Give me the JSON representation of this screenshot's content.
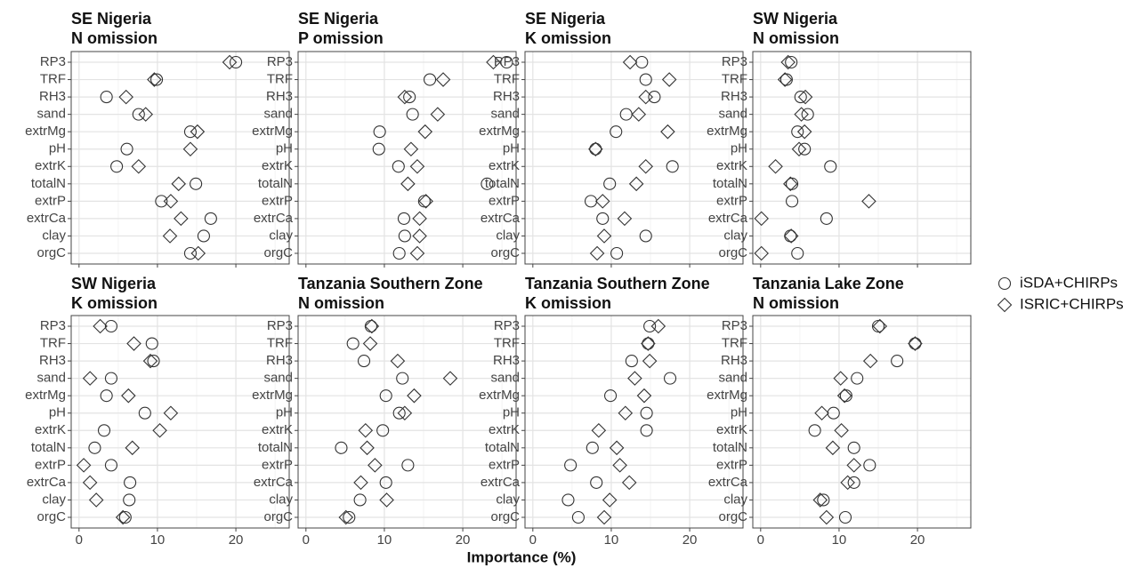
{
  "xlabel": "Importance (%)",
  "chart_data": [
    {
      "type": "dot",
      "title": "SE Nigeria",
      "subtitle": "N omission",
      "categories": [
        "RP3",
        "TRF",
        "RH3",
        "sand",
        "extrMg",
        "pH",
        "extrK",
        "totalN",
        "extrP",
        "extrCa",
        "clay",
        "orgC"
      ],
      "xlim": [
        -1.0,
        26.8
      ],
      "xticks": [
        0,
        10,
        20
      ],
      "grid": true,
      "series": [
        {
          "name": "iSDA+CHIRPs",
          "marker": "circle",
          "color": "#333333",
          "values": [
            20.0,
            9.9,
            3.5,
            7.6,
            14.2,
            6.1,
            4.8,
            14.9,
            10.5,
            16.8,
            15.9,
            14.2
          ]
        },
        {
          "name": "ISRIC+CHIRPs",
          "marker": "diamond",
          "color": "#333333",
          "values": [
            19.2,
            9.6,
            6.0,
            8.5,
            15.1,
            14.2,
            7.6,
            12.7,
            11.7,
            13.0,
            11.6,
            15.2
          ]
        }
      ]
    },
    {
      "type": "dot",
      "title": "SE Nigeria",
      "subtitle": "P omission",
      "categories": [
        "RP3",
        "TRF",
        "RH3",
        "sand",
        "extrMg",
        "pH",
        "extrK",
        "totalN",
        "extrP",
        "extrCa",
        "clay",
        "orgC"
      ],
      "xlim": [
        -1.0,
        26.8
      ],
      "xticks": [
        0,
        10,
        20
      ],
      "grid": true,
      "series": [
        {
          "name": "iSDA+CHIRPs",
          "marker": "circle",
          "color": "#333333",
          "values": [
            25.6,
            15.8,
            13.2,
            13.6,
            9.4,
            9.3,
            11.8,
            23.1,
            15.1,
            12.5,
            12.6,
            11.9
          ]
        },
        {
          "name": "ISRIC+CHIRPs",
          "marker": "diamond",
          "color": "#333333",
          "values": [
            23.9,
            17.5,
            12.6,
            16.8,
            15.2,
            13.4,
            14.2,
            13.0,
            15.3,
            14.5,
            14.5,
            14.2
          ]
        }
      ]
    },
    {
      "type": "dot",
      "title": "SE Nigeria",
      "subtitle": "K omission",
      "categories": [
        "RP3",
        "TRF",
        "RH3",
        "sand",
        "extrMg",
        "pH",
        "extrK",
        "totalN",
        "extrP",
        "extrCa",
        "clay",
        "orgC"
      ],
      "xlim": [
        -1.0,
        26.8
      ],
      "xticks": [
        0,
        10,
        20
      ],
      "grid": true,
      "series": [
        {
          "name": "iSDA+CHIRPs",
          "marker": "circle",
          "color": "#333333",
          "values": [
            13.9,
            14.4,
            15.5,
            11.9,
            10.6,
            8.0,
            17.8,
            9.8,
            7.4,
            8.9,
            14.4,
            10.7
          ]
        },
        {
          "name": "ISRIC+CHIRPs",
          "marker": "diamond",
          "color": "#333333",
          "values": [
            12.4,
            17.4,
            14.4,
            13.5,
            17.2,
            8.0,
            14.4,
            13.2,
            8.9,
            11.7,
            9.1,
            8.2
          ]
        }
      ]
    },
    {
      "type": "dot",
      "title": "SW Nigeria",
      "subtitle": "N omission",
      "categories": [
        "RP3",
        "TRF",
        "RH3",
        "sand",
        "extrMg",
        "pH",
        "extrK",
        "totalN",
        "extrP",
        "extrCa",
        "clay",
        "orgC"
      ],
      "xlim": [
        -1.0,
        26.8
      ],
      "xticks": [
        0,
        10,
        20
      ],
      "grid": true,
      "series": [
        {
          "name": "iSDA+CHIRPs",
          "marker": "circle",
          "color": "#333333",
          "values": [
            3.9,
            3.3,
            5.1,
            6.0,
            4.7,
            5.6,
            8.9,
            4.0,
            4.0,
            8.4,
            3.8,
            4.7
          ]
        },
        {
          "name": "ISRIC+CHIRPs",
          "marker": "diamond",
          "color": "#333333",
          "values": [
            3.5,
            3.1,
            5.7,
            5.2,
            5.6,
            4.9,
            1.9,
            3.8,
            13.8,
            0.1,
            3.9,
            0.1
          ]
        }
      ]
    },
    {
      "type": "dot",
      "title": "SW Nigeria",
      "subtitle": "K omission",
      "categories": [
        "RP3",
        "TRF",
        "RH3",
        "sand",
        "extrMg",
        "pH",
        "extrK",
        "totalN",
        "extrP",
        "extrCa",
        "clay",
        "orgC"
      ],
      "xlim": [
        -1.0,
        26.8
      ],
      "xticks": [
        0,
        10,
        20
      ],
      "grid": true,
      "series": [
        {
          "name": "iSDA+CHIRPs",
          "marker": "circle",
          "color": "#333333",
          "values": [
            4.1,
            9.3,
            9.5,
            4.1,
            3.5,
            8.4,
            3.2,
            2.0,
            4.1,
            6.5,
            6.4,
            5.9
          ]
        },
        {
          "name": "ISRIC+CHIRPs",
          "marker": "diamond",
          "color": "#333333",
          "values": [
            2.7,
            7.0,
            9.1,
            1.4,
            6.3,
            11.7,
            10.3,
            6.8,
            0.6,
            1.4,
            2.2,
            5.6
          ]
        }
      ]
    },
    {
      "type": "dot",
      "title": "Tanzania Southern Zone",
      "subtitle": "N omission",
      "categories": [
        "RP3",
        "TRF",
        "RH3",
        "sand",
        "extrMg",
        "pH",
        "extrK",
        "totalN",
        "extrP",
        "extrCa",
        "clay",
        "orgC"
      ],
      "xlim": [
        -1.0,
        26.8
      ],
      "xticks": [
        0,
        10,
        20
      ],
      "grid": true,
      "series": [
        {
          "name": "iSDA+CHIRPs",
          "marker": "circle",
          "color": "#333333",
          "values": [
            8.3,
            6.0,
            7.4,
            12.3,
            10.2,
            11.9,
            9.8,
            4.5,
            13.0,
            10.2,
            6.9,
            5.5
          ]
        },
        {
          "name": "ISRIC+CHIRPs",
          "marker": "diamond",
          "color": "#333333",
          "values": [
            8.4,
            8.2,
            11.7,
            18.4,
            13.8,
            12.6,
            7.6,
            7.8,
            8.8,
            7.0,
            10.3,
            5.1
          ]
        }
      ]
    },
    {
      "type": "dot",
      "title": "Tanzania Southern Zone",
      "subtitle": "K omission",
      "categories": [
        "RP3",
        "TRF",
        "RH3",
        "sand",
        "extrMg",
        "pH",
        "extrK",
        "totalN",
        "extrP",
        "extrCa",
        "clay",
        "orgC"
      ],
      "xlim": [
        -1.0,
        26.8
      ],
      "xticks": [
        0,
        10,
        20
      ],
      "grid": true,
      "series": [
        {
          "name": "iSDA+CHIRPs",
          "marker": "circle",
          "color": "#333333",
          "values": [
            14.9,
            14.7,
            12.6,
            17.5,
            9.9,
            14.5,
            14.5,
            7.6,
            4.8,
            8.1,
            4.5,
            5.8
          ]
        },
        {
          "name": "ISRIC+CHIRPs",
          "marker": "diamond",
          "color": "#333333",
          "values": [
            16.0,
            14.7,
            14.9,
            13.0,
            14.2,
            11.8,
            8.4,
            10.7,
            11.1,
            12.3,
            9.8,
            9.1
          ]
        }
      ]
    },
    {
      "type": "dot",
      "title": "Tanzania Lake Zone",
      "subtitle": "N omission",
      "categories": [
        "RP3",
        "TRF",
        "RH3",
        "sand",
        "extrMg",
        "pH",
        "extrK",
        "totalN",
        "extrP",
        "extrCa",
        "clay",
        "orgC"
      ],
      "xlim": [
        -1.0,
        26.8
      ],
      "xticks": [
        0,
        10,
        20
      ],
      "grid": true,
      "series": [
        {
          "name": "iSDA+CHIRPs",
          "marker": "circle",
          "color": "#333333",
          "values": [
            15.0,
            19.7,
            17.4,
            12.3,
            10.9,
            9.3,
            6.9,
            11.9,
            13.9,
            11.9,
            8.0,
            10.8
          ]
        },
        {
          "name": "ISRIC+CHIRPs",
          "marker": "diamond",
          "color": "#333333",
          "values": [
            15.2,
            19.7,
            14.0,
            10.2,
            10.7,
            7.8,
            10.3,
            9.2,
            11.9,
            11.1,
            7.6,
            8.4
          ]
        }
      ]
    }
  ]
}
